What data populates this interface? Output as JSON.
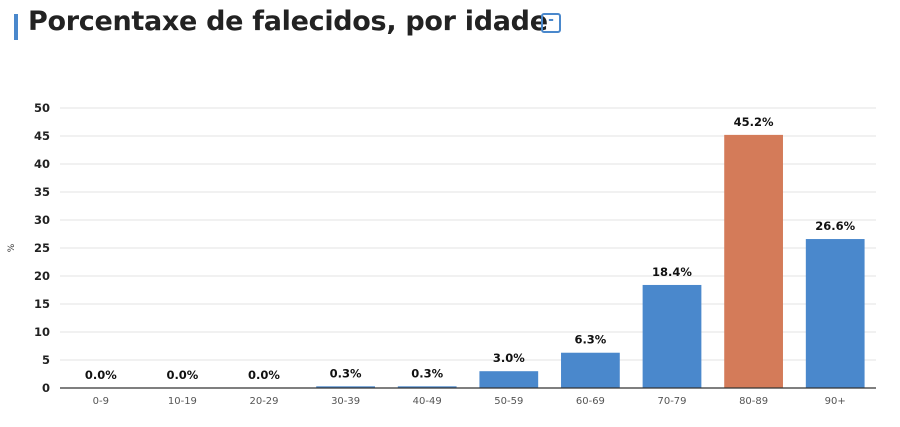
{
  "header": {
    "title": "Porcentaxe de falecidos, por idade",
    "collapse_symbol": "-"
  },
  "colors": {
    "accent": "#4a88cc",
    "bar": "#4a88cc",
    "highlight": "#d47b59"
  },
  "chart_data": {
    "type": "bar",
    "categories": [
      "0-9",
      "10-19",
      "20-29",
      "30-39",
      "40-49",
      "50-59",
      "60-69",
      "70-79",
      "80-89",
      "90+"
    ],
    "values": [
      0.0,
      0.0,
      0.0,
      0.3,
      0.3,
      3.0,
      6.3,
      18.4,
      45.2,
      26.6
    ],
    "data_labels": [
      "0.0%",
      "0.0%",
      "0.0%",
      "0.3%",
      "0.3%",
      "3.0%",
      "6.3%",
      "18.4%",
      "45.2%",
      "26.6%"
    ],
    "highlight_index": 8,
    "ylabel": "%",
    "ylim": [
      0,
      50
    ],
    "yticks": [
      0,
      5,
      10,
      15,
      20,
      25,
      30,
      35,
      40,
      45,
      50
    ],
    "grid": true
  }
}
